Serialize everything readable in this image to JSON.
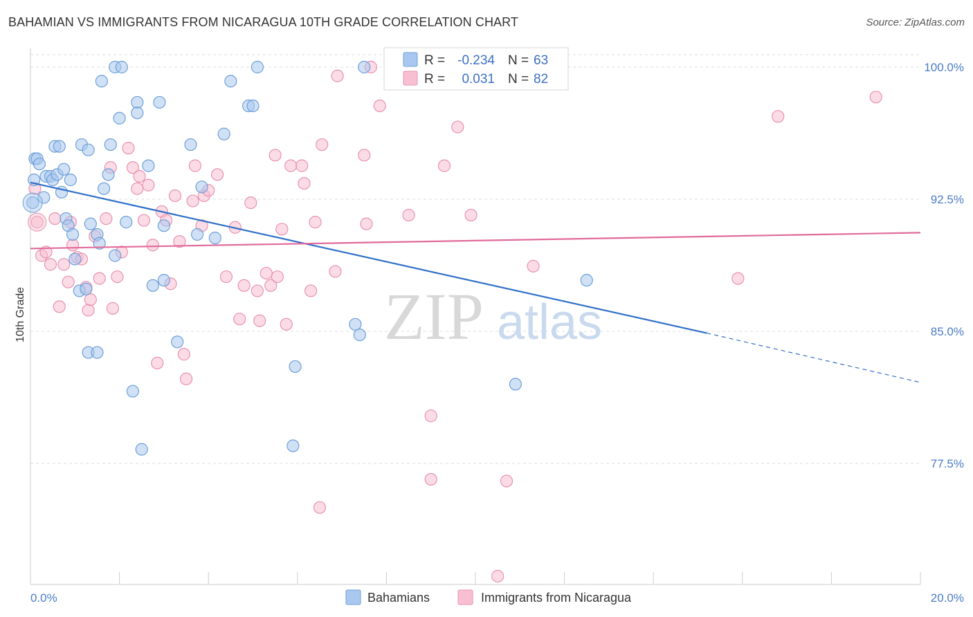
{
  "header": {
    "title": "BAHAMIAN VS IMMIGRANTS FROM NICARAGUA 10TH GRADE CORRELATION CHART",
    "source": "Source: ZipAtlas.com"
  },
  "watermark": {
    "zip": "ZIP",
    "atlas": "atlas"
  },
  "colors": {
    "blue_fill": "#a9c8ef",
    "blue_stroke": "#6d9fd8",
    "blue_line": "#2f6fc8",
    "pink_fill": "#f7bfd1",
    "pink_stroke": "#e891b0",
    "pink_line": "#e0699a",
    "tick_text": "#4a7cc7",
    "grid": "#dddddd"
  },
  "legend_box": {
    "rows": [
      {
        "r_label": "R =",
        "r_value": "-0.234",
        "n_label": "N =",
        "n_value": "63"
      },
      {
        "r_label": "R =",
        "r_value": "0.031",
        "n_label": "N =",
        "n_value": "82"
      }
    ]
  },
  "bottom_legend": [
    "Bahamians",
    "Immigrants from Nicaragua"
  ],
  "chart_data": {
    "type": "scatter",
    "title": "BAHAMIAN VS IMMIGRANTS FROM NICARAGUA 10TH GRADE CORRELATION CHART",
    "ylabel": "10th Grade",
    "xlabel": "",
    "xlim": [
      0,
      20
    ],
    "ylim": [
      70.5,
      100.5
    ],
    "x_tick_labels": [
      {
        "value": 0,
        "label": "0.0%"
      },
      {
        "value": 20,
        "label": "20.0%"
      }
    ],
    "y_ticks": [
      {
        "value": 100.0,
        "label": "100.0%"
      },
      {
        "value": 92.5,
        "label": "92.5%"
      },
      {
        "value": 85.0,
        "label": "85.0%"
      },
      {
        "value": 77.5,
        "label": "77.5%"
      }
    ],
    "grid": true,
    "legend_placement": "top-center",
    "series": [
      {
        "name": "Bahamians",
        "R": -0.234,
        "N": 63,
        "trend": {
          "x0": 0,
          "y0": 93.45,
          "x1": 15.2,
          "y1": 84.9,
          "dash_to_x": 20,
          "dash_to_y": 82.1
        },
        "points": [
          [
            0.05,
            92.3
          ],
          [
            0.08,
            93.6
          ],
          [
            0.1,
            94.8
          ],
          [
            0.15,
            94.8
          ],
          [
            0.2,
            94.5
          ],
          [
            0.3,
            92.6
          ],
          [
            0.35,
            93.8
          ],
          [
            0.45,
            93.8
          ],
          [
            0.5,
            93.6
          ],
          [
            0.55,
            95.5
          ],
          [
            0.6,
            93.9
          ],
          [
            0.65,
            95.5
          ],
          [
            0.7,
            92.9
          ],
          [
            0.75,
            94.2
          ],
          [
            0.8,
            91.4
          ],
          [
            0.85,
            91.0
          ],
          [
            0.9,
            93.6
          ],
          [
            0.95,
            90.5
          ],
          [
            1.15,
            95.6
          ],
          [
            1.3,
            95.3
          ],
          [
            1.0,
            89.1
          ],
          [
            1.1,
            87.3
          ],
          [
            1.25,
            87.4
          ],
          [
            1.3,
            83.8
          ],
          [
            1.5,
            83.8
          ],
          [
            1.35,
            91.1
          ],
          [
            1.5,
            90.5
          ],
          [
            1.55,
            90.0
          ],
          [
            1.6,
            99.2
          ],
          [
            1.65,
            93.1
          ],
          [
            1.75,
            93.9
          ],
          [
            1.8,
            95.6
          ],
          [
            1.9,
            89.3
          ],
          [
            1.9,
            100.0
          ],
          [
            2.0,
            97.1
          ],
          [
            2.05,
            100.0
          ],
          [
            2.15,
            91.2
          ],
          [
            2.3,
            81.6
          ],
          [
            2.4,
            98.0
          ],
          [
            2.4,
            97.4
          ],
          [
            2.5,
            78.3
          ],
          [
            2.65,
            94.4
          ],
          [
            2.75,
            87.6
          ],
          [
            2.9,
            98.0
          ],
          [
            3.0,
            91.0
          ],
          [
            3.0,
            87.9
          ],
          [
            3.3,
            84.4
          ],
          [
            3.6,
            95.6
          ],
          [
            3.75,
            90.5
          ],
          [
            3.85,
            93.2
          ],
          [
            4.15,
            90.3
          ],
          [
            4.35,
            96.2
          ],
          [
            4.5,
            99.2
          ],
          [
            4.9,
            97.8
          ],
          [
            5.0,
            97.8
          ],
          [
            5.1,
            100.0
          ],
          [
            5.9,
            78.5
          ],
          [
            5.95,
            83.0
          ],
          [
            7.3,
            85.4
          ],
          [
            7.4,
            84.8
          ],
          [
            7.5,
            100.0
          ],
          [
            10.9,
            82.0
          ],
          [
            12.5,
            87.9
          ]
        ]
      },
      {
        "name": "Immigrants from Nicaragua",
        "R": 0.031,
        "N": 82,
        "trend": {
          "x0": 0,
          "y0": 89.7,
          "x1": 20,
          "y1": 90.6
        },
        "points": [
          [
            0.1,
            93.1
          ],
          [
            0.15,
            91.2
          ],
          [
            0.25,
            89.3
          ],
          [
            0.35,
            89.5
          ],
          [
            0.45,
            88.8
          ],
          [
            0.55,
            91.4
          ],
          [
            0.65,
            86.4
          ],
          [
            0.75,
            88.8
          ],
          [
            0.85,
            87.8
          ],
          [
            0.9,
            91.2
          ],
          [
            0.95,
            89.9
          ],
          [
            1.05,
            89.2
          ],
          [
            1.15,
            89.1
          ],
          [
            1.25,
            87.5
          ],
          [
            1.3,
            86.2
          ],
          [
            1.35,
            86.8
          ],
          [
            1.45,
            90.4
          ],
          [
            1.55,
            88.0
          ],
          [
            1.7,
            91.4
          ],
          [
            1.8,
            94.3
          ],
          [
            1.85,
            86.3
          ],
          [
            1.95,
            88.1
          ],
          [
            2.05,
            89.5
          ],
          [
            2.2,
            95.4
          ],
          [
            2.3,
            94.3
          ],
          [
            2.4,
            93.1
          ],
          [
            2.45,
            93.8
          ],
          [
            2.55,
            91.3
          ],
          [
            2.65,
            93.3
          ],
          [
            2.75,
            89.9
          ],
          [
            2.85,
            83.2
          ],
          [
            2.95,
            91.8
          ],
          [
            3.05,
            91.3
          ],
          [
            3.15,
            87.7
          ],
          [
            3.25,
            92.7
          ],
          [
            3.35,
            90.1
          ],
          [
            3.45,
            83.7
          ],
          [
            3.5,
            82.3
          ],
          [
            3.65,
            92.4
          ],
          [
            3.7,
            94.4
          ],
          [
            3.85,
            91.0
          ],
          [
            3.9,
            92.7
          ],
          [
            4.0,
            93.0
          ],
          [
            4.2,
            93.9
          ],
          [
            4.4,
            88.1
          ],
          [
            4.6,
            90.9
          ],
          [
            4.7,
            85.7
          ],
          [
            4.8,
            87.6
          ],
          [
            4.95,
            92.3
          ],
          [
            5.1,
            87.3
          ],
          [
            5.15,
            85.6
          ],
          [
            5.3,
            88.3
          ],
          [
            5.4,
            87.6
          ],
          [
            5.5,
            95.0
          ],
          [
            5.55,
            88.1
          ],
          [
            5.65,
            90.8
          ],
          [
            5.75,
            85.4
          ],
          [
            5.85,
            94.4
          ],
          [
            6.1,
            94.4
          ],
          [
            6.15,
            93.4
          ],
          [
            6.3,
            87.3
          ],
          [
            6.4,
            91.2
          ],
          [
            6.5,
            75.0
          ],
          [
            6.55,
            95.6
          ],
          [
            6.85,
            88.4
          ],
          [
            6.9,
            99.5
          ],
          [
            7.5,
            95.0
          ],
          [
            7.55,
            91.1
          ],
          [
            7.65,
            100.0
          ],
          [
            7.85,
            97.8
          ],
          [
            8.5,
            91.6
          ],
          [
            9.0,
            80.2
          ],
          [
            9.0,
            76.6
          ],
          [
            9.3,
            94.4
          ],
          [
            9.6,
            96.6
          ],
          [
            9.9,
            91.6
          ],
          [
            10.5,
            71.1
          ],
          [
            10.7,
            76.5
          ],
          [
            11.3,
            88.7
          ],
          [
            15.9,
            88.0
          ],
          [
            16.8,
            97.2
          ],
          [
            19.0,
            98.3
          ]
        ]
      }
    ]
  }
}
